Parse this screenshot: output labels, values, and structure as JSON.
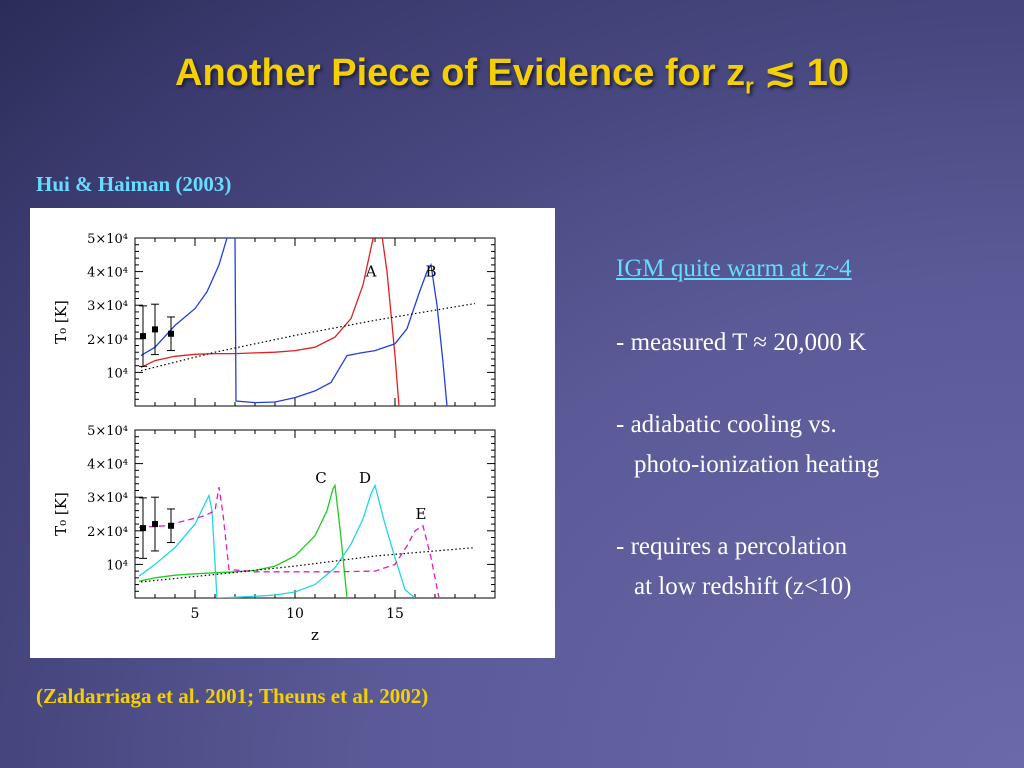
{
  "slide": {
    "title_main": "Another Piece of Evidence for z",
    "title_sub": "r",
    "title_tail": " ≲ 10",
    "citation_top": "Hui & Haiman (2003)",
    "citation_bottom": "(Zaldarriaga et al. 2001; Theuns et al. 2002)"
  },
  "bullets": {
    "heading": "IGM quite warm at z~4",
    "items": [
      {
        "line1": "- measured T ≈ 20,000 K",
        "line2": ""
      },
      {
        "line1": "- adiabatic cooling vs.",
        "line2": "photo-ionization heating"
      },
      {
        "line1": "- requires a percolation",
        "line2": "at low redshift (z<10)"
      }
    ]
  },
  "chart_data": [
    {
      "type": "line",
      "ylabel": "T₀ [K]",
      "xlabel": "",
      "xlim": [
        2,
        20
      ],
      "ylim": [
        0,
        50000
      ],
      "yticks": [
        10000,
        20000,
        30000,
        40000,
        50000
      ],
      "ytick_labels": [
        "10⁴",
        "2×10⁴",
        "3×10⁴",
        "4×10⁴",
        "5×10⁴"
      ],
      "series": [
        {
          "name": "A",
          "color": "#e02020",
          "style": "solid",
          "label_at": [
            13.8,
            38500
          ],
          "points": [
            [
              2.3,
              11500
            ],
            [
              3,
              13500
            ],
            [
              4,
              14800
            ],
            [
              5,
              15400
            ],
            [
              6,
              15600
            ],
            [
              7,
              15600
            ],
            [
              8,
              15800
            ],
            [
              9,
              16000
            ],
            [
              10,
              16500
            ],
            [
              11,
              17500
            ],
            [
              12,
              20500
            ],
            [
              12.8,
              26000
            ],
            [
              13.4,
              36000
            ],
            [
              13.8,
              47000
            ],
            [
              14.1,
              55000
            ],
            [
              14.2,
              57000
            ],
            [
              14.6,
              40000
            ],
            [
              15.0,
              15000
            ],
            [
              15.2,
              0
            ]
          ]
        },
        {
          "name": "B",
          "color": "#2040e0",
          "style": "solid",
          "label_at": [
            16.8,
            38500
          ],
          "points": [
            [
              2.3,
              15000
            ],
            [
              3,
              17500
            ],
            [
              4,
              24000
            ],
            [
              5,
              29000
            ],
            [
              5.6,
              34000
            ],
            [
              6.2,
              42000
            ],
            [
              6.6,
              50000
            ],
            [
              6.8,
              56000
            ],
            [
              7.0,
              50000
            ],
            [
              7.05,
              1500
            ],
            [
              8,
              1000
            ],
            [
              9,
              1200
            ],
            [
              10,
              2500
            ],
            [
              11,
              4500
            ],
            [
              11.8,
              7000
            ],
            [
              12.3,
              12000
            ],
            [
              12.6,
              15000
            ],
            [
              13.3,
              15800
            ],
            [
              14.0,
              16500
            ],
            [
              15,
              18500
            ],
            [
              15.6,
              23000
            ],
            [
              16.2,
              33500
            ],
            [
              16.6,
              40000
            ],
            [
              16.8,
              42000
            ],
            [
              17.1,
              30000
            ],
            [
              17.4,
              13000
            ],
            [
              17.6,
              0
            ]
          ]
        },
        {
          "name": "",
          "color": "#000000",
          "style": "dotted",
          "points": [
            [
              2.3,
              10500
            ],
            [
              6,
              16000
            ],
            [
              10,
              21000
            ],
            [
              14,
              25500
            ],
            [
              19,
              30500
            ]
          ]
        },
        {
          "name": "",
          "color": "#000000",
          "style": "errorbars",
          "points": [
            [
              2.4,
              20800,
              9000
            ],
            [
              3,
              22800,
              7500
            ],
            [
              3.8,
              21500,
              5000
            ]
          ]
        }
      ]
    },
    {
      "type": "line",
      "ylabel": "T₀ [K]",
      "xlabel": "z",
      "xlim": [
        2,
        20
      ],
      "ylim": [
        0,
        50000
      ],
      "xticks": [
        5,
        10,
        15
      ],
      "xtick_labels": [
        "5",
        "10",
        "15"
      ],
      "yticks": [
        10000,
        20000,
        30000,
        40000,
        50000
      ],
      "ytick_labels": [
        "10⁴",
        "2×10⁴",
        "3×10⁴",
        "4×10⁴",
        "5×10⁴"
      ],
      "series": [
        {
          "name": "C",
          "color": "#20cc20",
          "style": "solid",
          "label_at": [
            11.3,
            34300
          ],
          "points": [
            [
              2.2,
              5000
            ],
            [
              3,
              6000
            ],
            [
              4,
              6800
            ],
            [
              5,
              7200
            ],
            [
              6,
              7500
            ],
            [
              7,
              7800
            ],
            [
              8,
              8200
            ],
            [
              9,
              9500
            ],
            [
              10,
              12500
            ],
            [
              11,
              18500
            ],
            [
              11.6,
              26000
            ],
            [
              11.9,
              32500
            ],
            [
              12.0,
              33500
            ],
            [
              12.3,
              18000
            ],
            [
              12.6,
              0
            ]
          ]
        },
        {
          "name": "D",
          "color": "#20d8e0",
          "style": "solid",
          "label_at": [
            13.5,
            34300
          ],
          "points": [
            [
              2.2,
              6500
            ],
            [
              3,
              10000
            ],
            [
              4,
              15000
            ],
            [
              5,
              22000
            ],
            [
              5.7,
              30500
            ],
            [
              5.85,
              26000
            ],
            [
              6.1,
              0
            ],
            [
              7,
              200
            ],
            [
              8,
              500
            ],
            [
              9,
              900
            ],
            [
              10,
              1800
            ],
            [
              11,
              4000
            ],
            [
              12,
              9000
            ],
            [
              12.8,
              16000
            ],
            [
              13.4,
              23500
            ],
            [
              13.8,
              31000
            ],
            [
              14.0,
              33500
            ],
            [
              14.5,
              22000
            ],
            [
              15,
              12000
            ],
            [
              15.5,
              2500
            ],
            [
              16,
              0
            ]
          ]
        },
        {
          "name": "E",
          "color": "#e020c0",
          "style": "dashed",
          "label_at": [
            16.3,
            23500
          ],
          "points": [
            [
              2.2,
              21000
            ],
            [
              3.5,
              21500
            ],
            [
              4.5,
              23000
            ],
            [
              5.5,
              24500
            ],
            [
              6.0,
              26000
            ],
            [
              6.2,
              33000
            ],
            [
              6.4,
              25000
            ],
            [
              6.7,
              8500
            ],
            [
              8,
              7800
            ],
            [
              10,
              7800
            ],
            [
              12,
              7800
            ],
            [
              14,
              8000
            ],
            [
              15,
              10000
            ],
            [
              15.6,
              15500
            ],
            [
              16,
              20000
            ],
            [
              16.4,
              21500
            ],
            [
              16.8,
              12000
            ],
            [
              17.2,
              0
            ]
          ]
        },
        {
          "name": "",
          "color": "#000000",
          "style": "dotted",
          "points": [
            [
              2.3,
              4800
            ],
            [
              6,
              7000
            ],
            [
              10,
              9500
            ],
            [
              14,
              12500
            ],
            [
              19,
              15000
            ]
          ]
        },
        {
          "name": "",
          "color": "#000000",
          "style": "errorbars",
          "points": [
            [
              2.4,
              20800,
              9000
            ],
            [
              3,
              22000,
              8000
            ],
            [
              3.8,
              21500,
              5000
            ]
          ]
        }
      ]
    }
  ]
}
